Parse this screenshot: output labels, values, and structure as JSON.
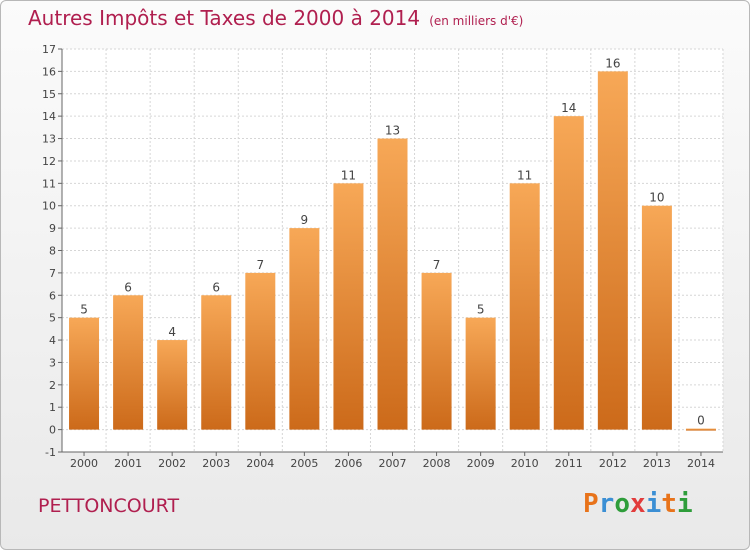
{
  "title": {
    "main": "Autres Impôts et Taxes de 2000 à 2014",
    "unit": "(en milliers d'€)"
  },
  "commune": "PETTONCOURT",
  "logo": {
    "text": "Proxiti",
    "colors": [
      "#e8731a",
      "#3b8fd4",
      "#2e9d3a",
      "#e23c3c",
      "#3b8fd4",
      "#e8731a",
      "#2e9d3a"
    ]
  },
  "colors": {
    "title": "#b01f4f",
    "bar_top": "#f7a857",
    "bar_bottom": "#cc6a1a",
    "plot_background": "#ffffff",
    "grid": "#d6d6d6"
  },
  "chart_data": {
    "type": "bar",
    "title": "Autres Impôts et Taxes de 2000 à 2014",
    "subtitle": "(en milliers d'€)",
    "xlabel": "",
    "ylabel": "",
    "categories": [
      "2000",
      "2001",
      "2002",
      "2003",
      "2004",
      "2005",
      "2006",
      "2007",
      "2008",
      "2009",
      "2010",
      "2011",
      "2012",
      "2013",
      "2014"
    ],
    "values": [
      5,
      6,
      4,
      6,
      7,
      9,
      11,
      13,
      7,
      5,
      11,
      14,
      16,
      10,
      0
    ],
    "ylim": [
      -1,
      17
    ],
    "yticks": [
      -1,
      0,
      1,
      2,
      3,
      4,
      5,
      6,
      7,
      8,
      9,
      10,
      11,
      12,
      13,
      14,
      15,
      16,
      17
    ],
    "grid": true,
    "data_labels": true
  }
}
